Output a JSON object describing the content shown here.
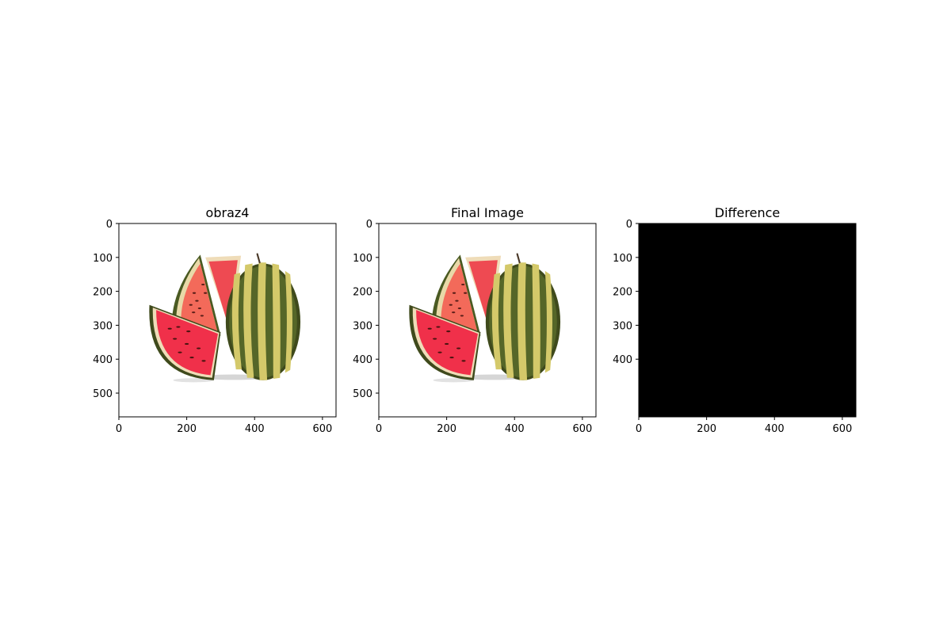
{
  "figure": {
    "background": "#ffffff"
  },
  "chart_data": [
    {
      "type": "image",
      "title": "obraz4",
      "image_content": "watermelon-illustration",
      "xlim": [
        0,
        640
      ],
      "ylim": [
        570,
        0
      ],
      "xticks": [
        0,
        200,
        400,
        600
      ],
      "yticks": [
        0,
        100,
        200,
        300,
        400,
        500
      ],
      "xlabel": "",
      "ylabel": ""
    },
    {
      "type": "image",
      "title": "Final Image",
      "image_content": "watermelon-illustration",
      "xlim": [
        0,
        640
      ],
      "ylim": [
        570,
        0
      ],
      "xticks": [
        0,
        200,
        400,
        600
      ],
      "yticks": [
        0,
        100,
        200,
        300,
        400,
        500
      ],
      "xlabel": "",
      "ylabel": ""
    },
    {
      "type": "image",
      "title": "Difference",
      "image_content": "all-black",
      "xlim": [
        0,
        640
      ],
      "ylim": [
        570,
        0
      ],
      "xticks": [
        0,
        200,
        400,
        600
      ],
      "yticks": [
        0,
        100,
        200,
        300,
        400
      ],
      "xlabel": "",
      "ylabel": ""
    }
  ],
  "colors": {
    "rind_dark": "#3f4a1c",
    "rind_light": "#d4c96a",
    "flesh": "#f0304a",
    "flesh_light": "#f56656",
    "pith": "#efdcb8",
    "difference_fill": "#000000"
  }
}
